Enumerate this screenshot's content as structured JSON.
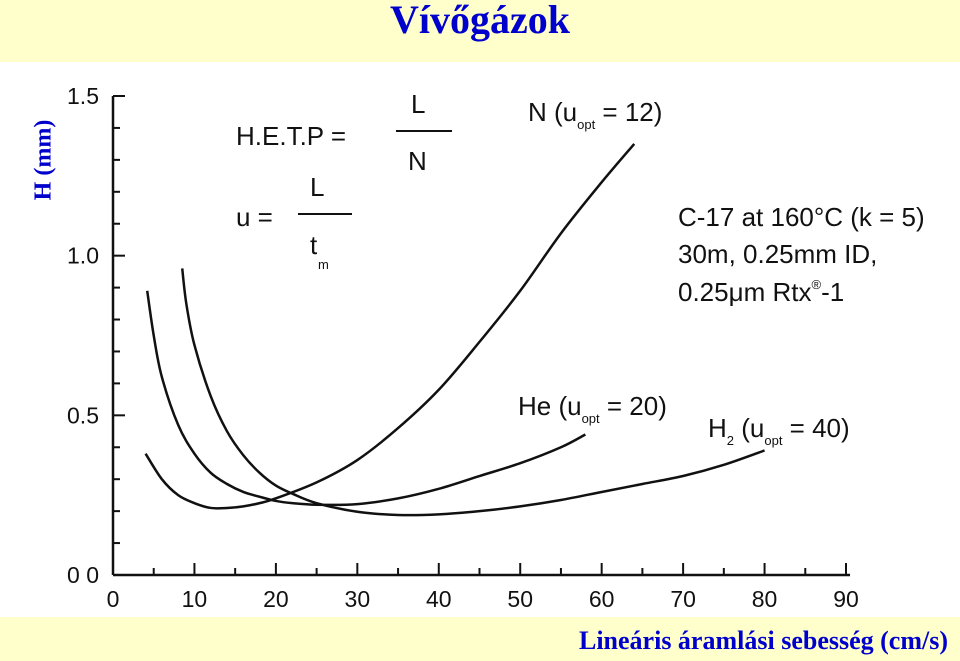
{
  "slide": {
    "title": "Vívőgázok",
    "x_axis_title": "Lineáris áramlási sebesség (cm/s)",
    "y_axis_title": "H (mm)"
  },
  "chart_data": {
    "type": "line",
    "x_ticks": [
      "0",
      "10",
      "20",
      "30",
      "40",
      "50",
      "60",
      "70",
      "80",
      "90"
    ],
    "y_ticks": [
      "0 0",
      "0.5",
      "1.0",
      "1.5"
    ],
    "xlim": [
      0,
      90
    ],
    "ylim": [
      0,
      1.5
    ],
    "grid": false,
    "series": [
      {
        "name": "N (u_opt = 12)",
        "label_main": "N (u",
        "label_sub": "opt",
        "label_tail": " = 12)",
        "x": [
          4,
          6,
          8,
          10,
          12,
          14,
          16,
          18,
          20,
          25,
          30,
          35,
          40,
          45,
          50,
          55,
          60,
          64
        ],
        "y": [
          0.38,
          0.3,
          0.25,
          0.225,
          0.21,
          0.21,
          0.215,
          0.225,
          0.24,
          0.29,
          0.36,
          0.46,
          0.58,
          0.73,
          0.89,
          1.07,
          1.23,
          1.35
        ]
      },
      {
        "name": "He (u_opt = 20)",
        "label_main": "He (u",
        "label_sub": "opt",
        "label_tail": " = 20)",
        "x": [
          4.2,
          5,
          6,
          8,
          10,
          12,
          14,
          16,
          18,
          20,
          22,
          25,
          30,
          35,
          40,
          45,
          50,
          55,
          58
        ],
        "y": [
          0.89,
          0.75,
          0.62,
          0.47,
          0.38,
          0.32,
          0.285,
          0.26,
          0.245,
          0.232,
          0.225,
          0.22,
          0.222,
          0.24,
          0.27,
          0.31,
          0.35,
          0.4,
          0.44
        ]
      },
      {
        "name": "H2 (u_opt = 40)",
        "label_main": "H",
        "label_sub2": "2",
        "label_mid": " (u",
        "label_sub": "opt",
        "label_tail": " = 40)",
        "x": [
          8.5,
          9,
          10,
          12,
          14,
          16,
          18,
          20,
          22,
          25,
          30,
          35,
          40,
          45,
          50,
          55,
          60,
          65,
          70,
          75,
          80
        ],
        "y": [
          0.96,
          0.85,
          0.72,
          0.56,
          0.45,
          0.375,
          0.32,
          0.28,
          0.255,
          0.225,
          0.198,
          0.188,
          0.19,
          0.2,
          0.215,
          0.235,
          0.26,
          0.285,
          0.31,
          0.345,
          0.39
        ]
      }
    ],
    "annotations": {
      "hetp_lhs": "H.E.T.P =",
      "hetp_num": "L",
      "hetp_den": "N",
      "u_lhs": "u =",
      "u_num": "L",
      "u_den": "t",
      "u_den_sub": "m",
      "cond_line1": "C-17 at 160°C (k = 5)",
      "cond_line2": "30m, 0.25mm ID,",
      "cond_line3": "0.25μm Rtx",
      "cond_reg": "®",
      "cond_tail": "-1"
    }
  }
}
